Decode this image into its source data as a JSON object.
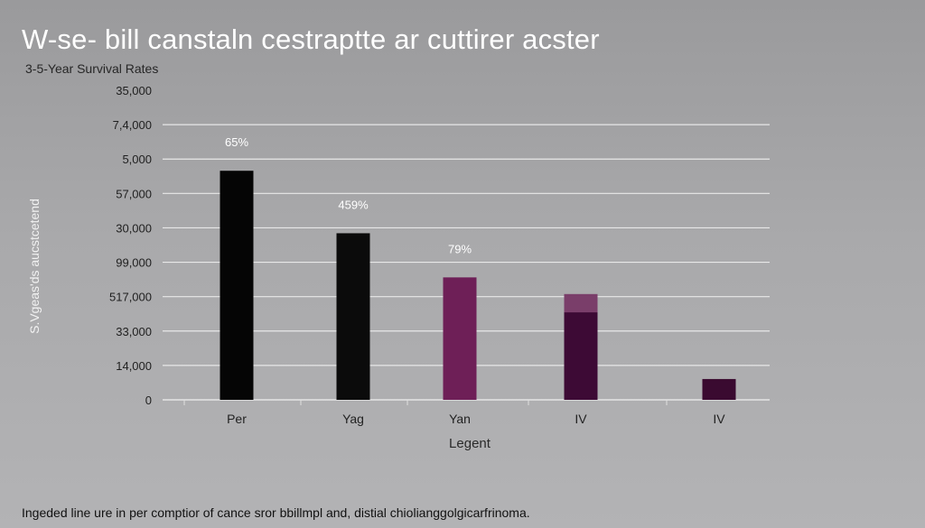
{
  "title": "W-se- bill canstaln cestraptte ar cuttirer acster",
  "subtitle": "3-5-Year Survival Rates",
  "caption": "Ingeded line ure in per comptior of cance sror bbillmpl and, distial chiolianggolgicarfrinoma.",
  "chart_data": {
    "type": "bar",
    "title": "W-se- bill canstaln cestraptte ar cuttirer acster",
    "subtitle": "3-5-Year Survival Rates",
    "ylabel": "S.Vgeas'ds aucstcetend",
    "xlabel": "Legent",
    "y_tick_labels": [
      "0",
      "14,000",
      "33,000",
      "517,000",
      "99,000",
      "30,000",
      "57,000",
      "5,000",
      "7,4,000",
      "35,000"
    ],
    "ylim": [
      0,
      35000
    ],
    "grid": true,
    "categories": [
      "Per",
      "Yag",
      "Yan",
      "IV",
      "IV"
    ],
    "values": [
      27500,
      20000,
      14700,
      12700,
      2500
    ],
    "overlay_values": [
      null,
      null,
      null,
      10500,
      null
    ],
    "data_labels": [
      "65%",
      "459%",
      "79%",
      "",
      ""
    ],
    "colors": [
      "#050505",
      "#0b0b0b",
      "#6e1f57",
      "#7a3e6a",
      "#3a0a30"
    ],
    "overlay_color": "#3d0a35"
  }
}
